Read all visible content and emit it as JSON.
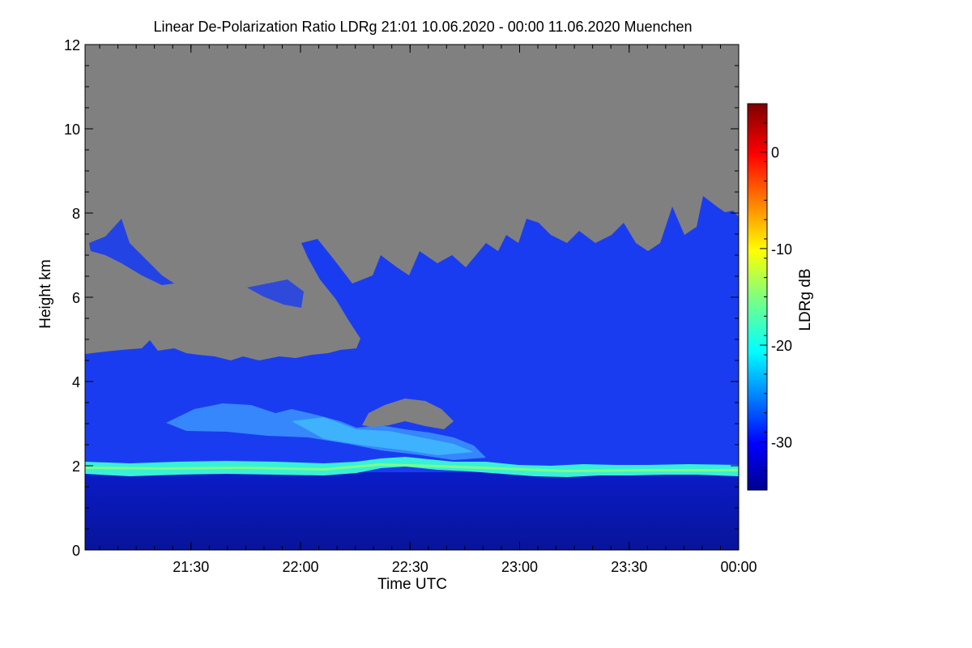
{
  "chart_data": {
    "type": "heatmap",
    "title": "Linear De-Polarization Ratio LDRg   21:01 10.06.2020 - 00:00 11.06.2020 Muenchen",
    "xlabel": "Time UTC",
    "ylabel": "Height km",
    "x_ticks": [
      "21:30",
      "22:00",
      "22:30",
      "23:00",
      "23:30",
      "00:00"
    ],
    "x_tick_minutes": [
      29,
      59,
      89,
      119,
      149,
      179
    ],
    "x_range_minutes": [
      0,
      179
    ],
    "y_ticks": [
      0,
      2,
      4,
      6,
      8,
      10,
      12
    ],
    "ylim": [
      0,
      12
    ],
    "colorbar": {
      "label": "LDRg dB",
      "ticks": [
        0,
        -10,
        -20,
        -30
      ],
      "range": [
        -35,
        5
      ]
    },
    "missing_color": "#808080",
    "colormap": "jet",
    "layers": {
      "boundary_layer_top_km": 1.95,
      "enhanced_band_km": [
        1.8,
        2.1
      ],
      "enhanced_band_ldr_db": -17,
      "cloud_base_ldr_db": -30,
      "surface_ldr_db": -33,
      "mid_feature_km": [
        2.3,
        3.6
      ],
      "gap_in_clouds_km": [
        2.85,
        3.6
      ]
    }
  }
}
